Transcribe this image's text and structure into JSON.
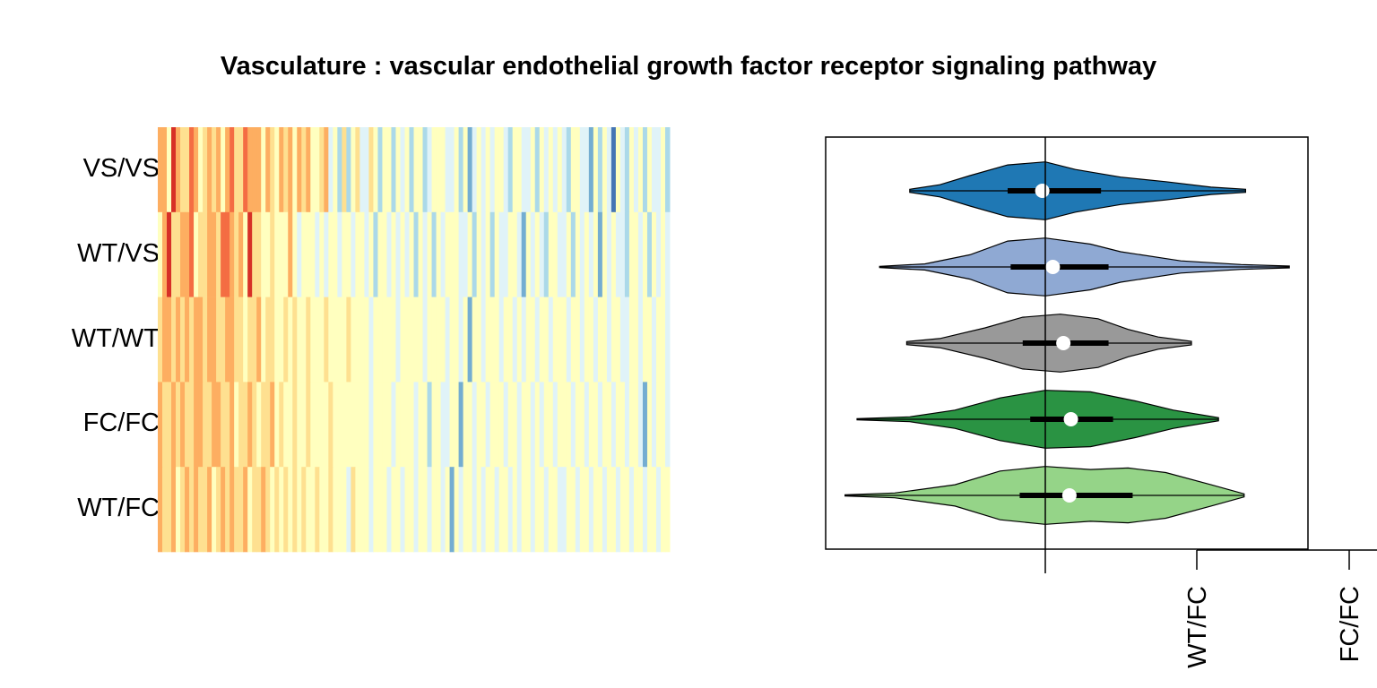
{
  "title": "Vasculature : vascular endothelial growth factor receptor signaling pathway",
  "chart_data": [
    {
      "type": "heatmap",
      "rows": [
        "VS/VS",
        "WT/VS",
        "WT/WT",
        "FC/FC",
        "WT/FC"
      ],
      "n_columns": 114,
      "color_scale": [
        "#d73027",
        "#f46d43",
        "#fdae61",
        "#fee090",
        "#ffffbf",
        "#e0f3f8",
        "#abd9e9",
        "#74add1",
        "#4575b4"
      ],
      "values": [
        [
          0.2,
          0.3,
          0.45,
          0.05,
          0.25,
          0.35,
          0.4,
          0.15,
          0.3,
          0.45,
          0.35,
          0.2,
          0.4,
          0.25,
          0.5,
          0.3,
          0.15,
          0.4,
          0.35,
          0.1,
          0.3,
          0.2,
          0.25,
          0.45,
          0.3,
          0.35,
          0.5,
          0.25,
          0.4,
          0.2,
          0.55,
          0.3,
          0.35,
          0.25,
          0.45,
          0.5,
          0.35,
          0.3,
          0.6,
          0.55,
          0.7,
          0.4,
          0.75,
          0.5,
          0.35,
          0.6,
          0.65,
          0.4,
          0.55,
          0.7,
          0.5,
          0.45,
          0.8,
          0.55,
          0.6,
          0.5,
          0.7,
          0.45,
          0.5,
          0.75,
          0.6,
          0.55,
          0.45,
          0.5,
          0.65,
          0.6,
          0.55,
          0.7,
          0.5,
          0.85,
          0.6,
          0.55,
          0.65,
          0.5,
          0.6,
          0.45,
          0.55,
          0.6,
          0.7,
          0.5,
          0.55,
          0.6,
          0.65,
          0.55,
          0.75,
          0.5,
          0.6,
          0.55,
          0.65,
          0.45,
          0.6,
          0.7,
          0.5,
          0.55,
          0.6,
          0.65,
          0.85,
          0.5,
          0.7,
          0.55,
          0.6,
          0.95,
          0.5,
          0.65,
          0.7,
          0.45,
          0.6,
          0.55,
          0.75,
          0.5,
          0.6,
          0.65,
          0.55,
          0.7
        ],
        [
          0.45,
          0.3,
          0.05,
          0.35,
          0.4,
          0.2,
          0.3,
          0.15,
          0.45,
          0.35,
          0.4,
          0.25,
          0.3,
          0.4,
          0.15,
          0.1,
          0.2,
          0.35,
          0.3,
          0.45,
          0.05,
          0.4,
          0.35,
          0.5,
          0.45,
          0.4,
          0.55,
          0.45,
          0.5,
          0.3,
          0.5,
          0.6,
          0.45,
          0.55,
          0.5,
          0.65,
          0.55,
          0.6,
          0.5,
          0.45,
          0.6,
          0.55,
          0.5,
          0.65,
          0.5,
          0.55,
          0.6,
          0.5,
          0.7,
          0.55,
          0.45,
          0.6,
          0.5,
          0.65,
          0.55,
          0.6,
          0.5,
          0.75,
          0.55,
          0.6,
          0.5,
          0.7,
          0.55,
          0.6,
          0.45,
          0.55,
          0.5,
          0.65,
          0.6,
          0.55,
          0.7,
          0.5,
          0.6,
          0.55,
          0.75,
          0.5,
          0.6,
          0.65,
          0.55,
          0.5,
          0.6,
          0.85,
          0.55,
          0.6,
          0.5,
          0.65,
          0.7,
          0.55,
          0.5,
          0.6,
          0.65,
          0.55,
          0.7,
          0.5,
          0.6,
          0.55,
          0.65,
          0.5,
          0.9,
          0.55,
          0.6,
          0.5,
          0.65,
          0.6,
          0.7,
          0.55,
          0.5,
          0.6,
          0.55,
          0.75,
          0.5,
          0.6,
          0.55,
          0.65
        ],
        [
          0.35,
          0.3,
          0.25,
          0.4,
          0.3,
          0.35,
          0.25,
          0.4,
          0.3,
          0.2,
          0.35,
          0.3,
          0.25,
          0.4,
          0.35,
          0.3,
          0.25,
          0.35,
          0.4,
          0.45,
          0.35,
          0.4,
          0.3,
          0.45,
          0.35,
          0.4,
          0.45,
          0.5,
          0.35,
          0.45,
          0.4,
          0.5,
          0.45,
          0.4,
          0.55,
          0.45,
          0.5,
          0.4,
          0.45,
          0.55,
          0.5,
          0.45,
          0.4,
          0.5,
          0.45,
          0.55,
          0.5,
          0.6,
          0.45,
          0.5,
          0.55,
          0.45,
          0.5,
          0.6,
          0.55,
          0.5,
          0.45,
          0.55,
          0.5,
          0.6,
          0.55,
          0.5,
          0.55,
          0.45,
          0.6,
          0.5,
          0.55,
          0.6,
          0.5,
          0.85,
          0.55,
          0.5,
          0.6,
          0.45,
          0.55,
          0.5,
          0.6,
          0.55,
          0.5,
          0.6,
          0.55,
          0.65,
          0.5,
          0.55,
          0.6,
          0.5,
          0.55,
          0.6,
          0.5,
          0.55,
          0.45,
          0.6,
          0.5,
          0.55,
          0.6,
          0.5,
          0.55,
          0.6,
          0.5,
          0.55,
          0.6,
          0.5,
          0.55,
          0.6,
          0.65,
          0.5,
          0.55,
          0.6,
          0.5,
          0.55,
          0.6,
          0.5,
          0.55,
          0.6
        ],
        [
          0.3,
          0.35,
          0.4,
          0.25,
          0.35,
          0.3,
          0.4,
          0.35,
          0.2,
          0.3,
          0.35,
          0.4,
          0.3,
          0.25,
          0.4,
          0.35,
          0.3,
          0.45,
          0.4,
          0.35,
          0.3,
          0.4,
          0.45,
          0.35,
          0.4,
          0.3,
          0.45,
          0.4,
          0.5,
          0.45,
          0.4,
          0.5,
          0.45,
          0.4,
          0.55,
          0.5,
          0.45,
          0.5,
          0.4,
          0.55,
          0.5,
          0.45,
          0.5,
          0.55,
          0.45,
          0.5,
          0.55,
          0.6,
          0.5,
          0.45,
          0.55,
          0.5,
          0.6,
          0.55,
          0.5,
          0.45,
          0.55,
          0.6,
          0.5,
          0.55,
          0.7,
          0.5,
          0.55,
          0.6,
          0.65,
          0.5,
          0.55,
          0.9,
          0.55,
          0.5,
          0.6,
          0.55,
          0.5,
          0.6,
          0.55,
          0.5,
          0.55,
          0.6,
          0.5,
          0.55,
          0.6,
          0.5,
          0.55,
          0.6,
          0.5,
          0.65,
          0.55,
          0.5,
          0.6,
          0.55,
          0.5,
          0.55,
          0.6,
          0.5,
          0.55,
          0.6,
          0.5,
          0.55,
          0.6,
          0.5,
          0.55,
          0.6,
          0.5,
          0.55,
          0.6,
          0.5,
          0.55,
          0.6,
          0.85,
          0.55,
          0.6,
          0.5,
          0.55,
          0.6
        ],
        [
          0.25,
          0.35,
          0.4,
          0.3,
          0.45,
          0.35,
          0.3,
          0.4,
          0.25,
          0.35,
          0.4,
          0.3,
          0.45,
          0.35,
          0.3,
          0.4,
          0.2,
          0.35,
          0.4,
          0.3,
          0.45,
          0.35,
          0.4,
          0.3,
          0.35,
          0.45,
          0.4,
          0.5,
          0.35,
          0.45,
          0.4,
          0.5,
          0.35,
          0.45,
          0.55,
          0.4,
          0.5,
          0.45,
          0.35,
          0.55,
          0.5,
          0.45,
          0.6,
          0.4,
          0.5,
          0.55,
          0.45,
          0.6,
          0.5,
          0.55,
          0.45,
          0.6,
          0.5,
          0.55,
          0.65,
          0.45,
          0.5,
          0.6,
          0.55,
          0.5,
          0.65,
          0.55,
          0.5,
          0.6,
          0.55,
          0.9,
          0.5,
          0.6,
          0.55,
          0.5,
          0.65,
          0.55,
          0.6,
          0.5,
          0.55,
          0.6,
          0.5,
          0.55,
          0.6,
          0.5,
          0.65,
          0.55,
          0.5,
          0.6,
          0.55,
          0.5,
          0.6,
          0.55,
          0.5,
          0.6,
          0.65,
          0.5,
          0.55,
          0.6,
          0.5,
          0.55,
          0.6,
          0.5,
          0.55,
          0.6,
          0.5,
          0.55,
          0.6,
          0.5,
          0.55,
          0.6,
          0.5,
          0.55,
          0.6,
          0.5,
          0.55,
          0.6,
          0.5,
          0.55
        ]
      ]
    },
    {
      "type": "violin",
      "orientation": "horizontal",
      "xlim": [
        -1.45,
        1.75
      ],
      "reference_line": 0,
      "groups": [
        {
          "color": "#1f78b4",
          "min": -0.9,
          "q1": -0.25,
          "median": -0.02,
          "q3": 0.37,
          "max": 1.33,
          "max_half_height": 0.5,
          "density": [
            [
              -0.9,
              0.05
            ],
            [
              -0.7,
              0.2
            ],
            [
              -0.5,
              0.5
            ],
            [
              -0.25,
              0.85
            ],
            [
              0.0,
              0.95
            ],
            [
              0.2,
              0.7
            ],
            [
              0.5,
              0.45
            ],
            [
              0.8,
              0.3
            ],
            [
              1.1,
              0.12
            ],
            [
              1.33,
              0.05
            ]
          ]
        },
        {
          "color": "#8fa9d3",
          "min": -1.1,
          "q1": -0.23,
          "median": 0.05,
          "q3": 0.42,
          "max": 1.62,
          "max_half_height": 0.5,
          "density": [
            [
              -1.1,
              0.02
            ],
            [
              -0.8,
              0.1
            ],
            [
              -0.5,
              0.4
            ],
            [
              -0.25,
              0.85
            ],
            [
              0.0,
              0.95
            ],
            [
              0.3,
              0.75
            ],
            [
              0.5,
              0.5
            ],
            [
              0.9,
              0.2
            ],
            [
              1.3,
              0.08
            ],
            [
              1.62,
              0.03
            ]
          ]
        },
        {
          "color": "#999999",
          "min": -0.92,
          "q1": -0.15,
          "median": 0.12,
          "q3": 0.42,
          "max": 0.97,
          "max_half_height": 0.5,
          "density": [
            [
              -0.92,
              0.05
            ],
            [
              -0.7,
              0.15
            ],
            [
              -0.4,
              0.5
            ],
            [
              -0.15,
              0.85
            ],
            [
              0.1,
              0.95
            ],
            [
              0.35,
              0.8
            ],
            [
              0.55,
              0.45
            ],
            [
              0.75,
              0.2
            ],
            [
              0.97,
              0.06
            ]
          ]
        },
        {
          "color": "#2a9343",
          "min": -1.25,
          "q1": -0.1,
          "median": 0.17,
          "q3": 0.45,
          "max": 1.15,
          "max_half_height": 0.5,
          "density": [
            [
              -1.25,
              0.02
            ],
            [
              -0.9,
              0.08
            ],
            [
              -0.6,
              0.3
            ],
            [
              -0.3,
              0.7
            ],
            [
              0.0,
              0.95
            ],
            [
              0.3,
              0.9
            ],
            [
              0.6,
              0.6
            ],
            [
              0.85,
              0.3
            ],
            [
              1.15,
              0.05
            ]
          ]
        },
        {
          "color": "#95d488",
          "min": -1.33,
          "q1": -0.17,
          "median": 0.16,
          "q3": 0.58,
          "max": 1.32,
          "max_half_height": 0.5,
          "density": [
            [
              -1.33,
              0.02
            ],
            [
              -1.0,
              0.08
            ],
            [
              -0.6,
              0.35
            ],
            [
              -0.3,
              0.8
            ],
            [
              0.0,
              0.95
            ],
            [
              0.3,
              0.85
            ],
            [
              0.55,
              0.9
            ],
            [
              0.8,
              0.75
            ],
            [
              1.1,
              0.35
            ],
            [
              1.32,
              0.05
            ]
          ]
        }
      ],
      "tick_labels": [
        "WT/FC",
        "FC/FC"
      ]
    }
  ]
}
